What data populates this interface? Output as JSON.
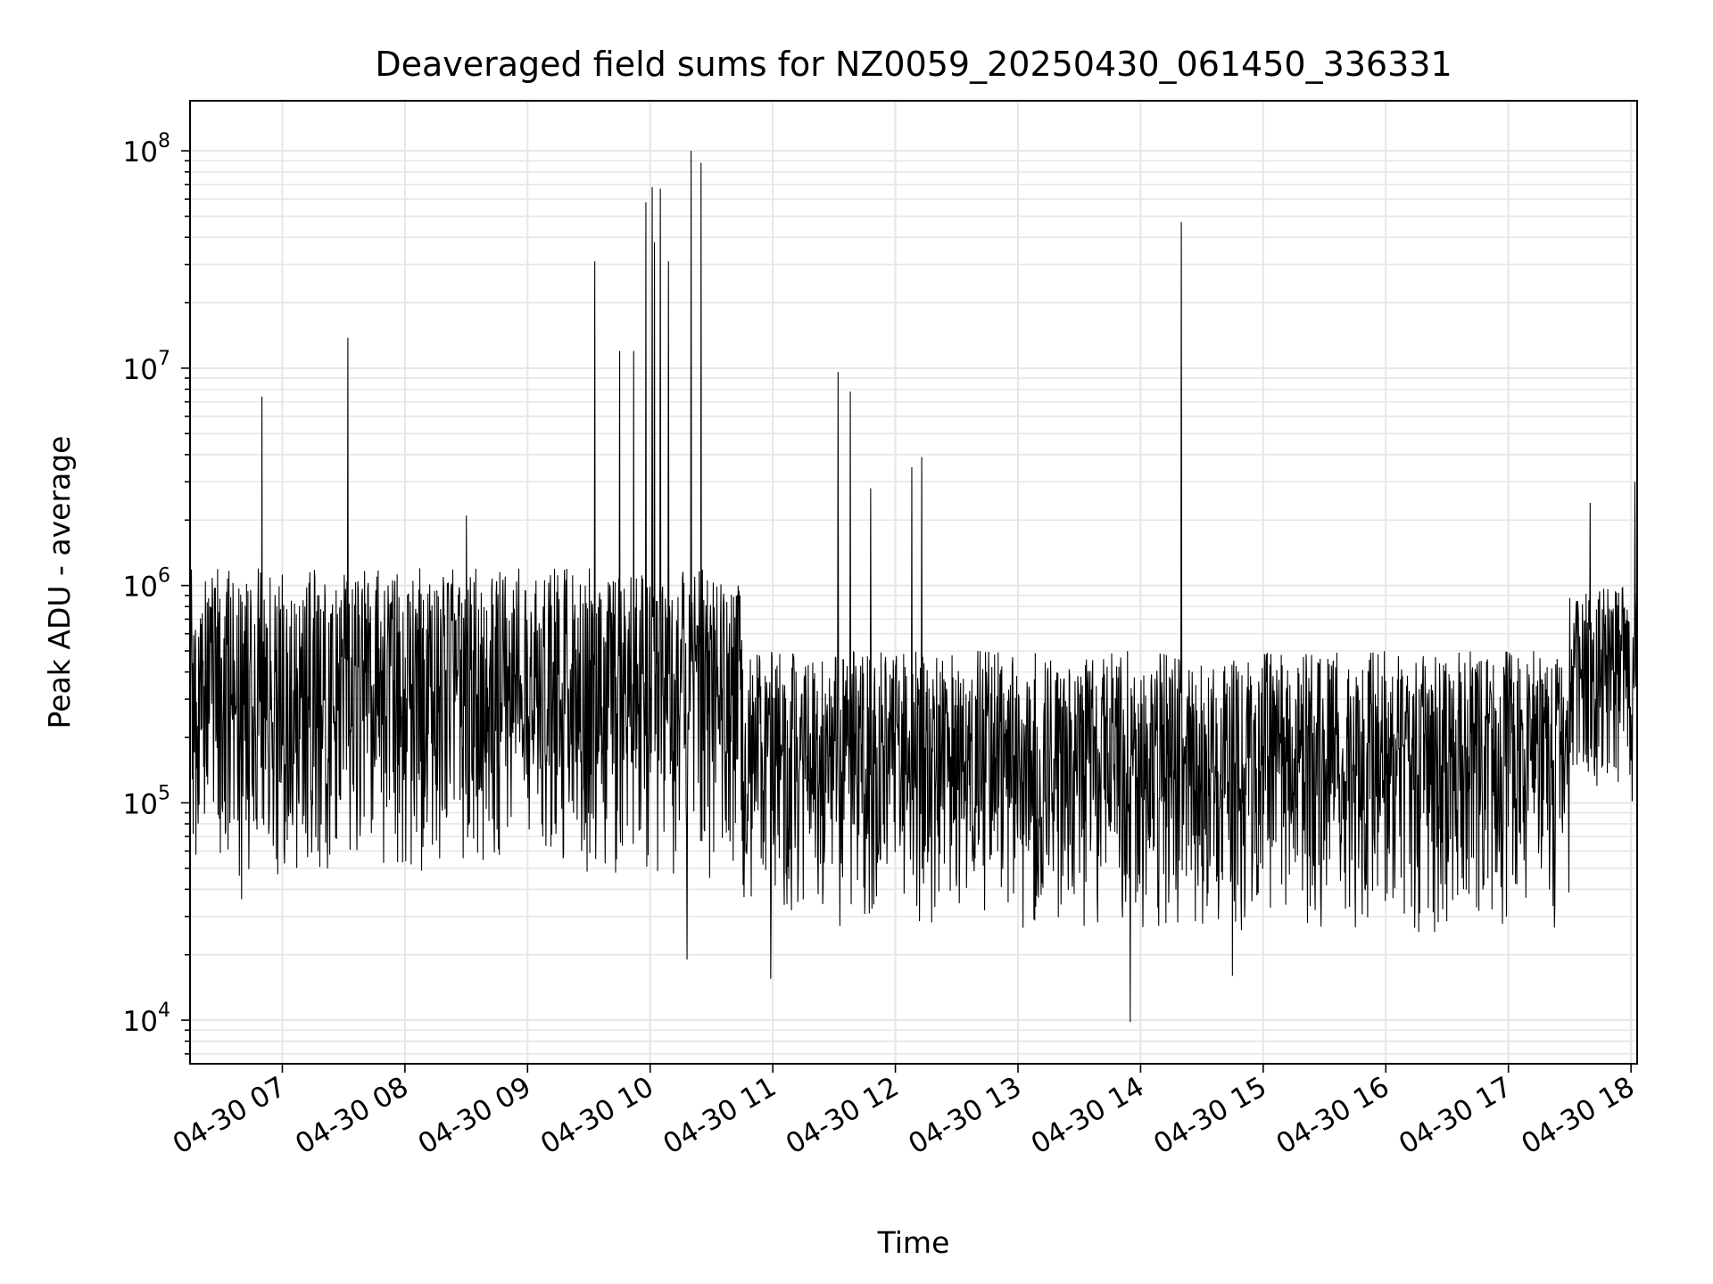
{
  "chart_data": {
    "type": "line",
    "title": "Deaveraged field sums for NZ0059_20250430_061450_336331",
    "xlabel": "Time",
    "ylabel": "Peak ADU - average",
    "yscale": "log",
    "grid": true,
    "line_color": "#000000",
    "grid_color": "#e6e6e6",
    "xlim": [
      "2025-04-30 06:14:50",
      "2025-04-30 18:03:00"
    ],
    "ylim": [
      6300,
      170000000
    ],
    "x_ticks": [
      {
        "time": "2025-04-30 07:00",
        "label": "04-30 07"
      },
      {
        "time": "2025-04-30 08:00",
        "label": "04-30 08"
      },
      {
        "time": "2025-04-30 09:00",
        "label": "04-30 09"
      },
      {
        "time": "2025-04-30 10:00",
        "label": "04-30 10"
      },
      {
        "time": "2025-04-30 11:00",
        "label": "04-30 11"
      },
      {
        "time": "2025-04-30 12:00",
        "label": "04-30 12"
      },
      {
        "time": "2025-04-30 13:00",
        "label": "04-30 13"
      },
      {
        "time": "2025-04-30 14:00",
        "label": "04-30 14"
      },
      {
        "time": "2025-04-30 15:00",
        "label": "04-30 15"
      },
      {
        "time": "2025-04-30 16:00",
        "label": "04-30 16"
      },
      {
        "time": "2025-04-30 17:00",
        "label": "04-30 17"
      },
      {
        "time": "2025-04-30 18:00",
        "label": "04-30 18"
      }
    ],
    "y_ticks": [
      {
        "value": 10000,
        "base": "10",
        "exp": "4"
      },
      {
        "value": 100000,
        "base": "10",
        "exp": "5"
      },
      {
        "value": 1000000,
        "base": "10",
        "exp": "6"
      },
      {
        "value": 10000000,
        "base": "10",
        "exp": "7"
      },
      {
        "value": 100000000,
        "base": "10",
        "exp": "8"
      }
    ],
    "segments": [
      {
        "start": "2025-04-30 06:14:50",
        "end": "2025-04-30 10:45",
        "high": 1200000,
        "low": 45000
      },
      {
        "start": "2025-04-30 10:45",
        "end": "2025-04-30 17:30",
        "high": 500000,
        "low": 25000
      },
      {
        "start": "2025-04-30 17:30",
        "end": "2025-04-30 18:03",
        "high": 1000000,
        "low": 100000
      }
    ],
    "peaks": [
      {
        "time": "2025-04-30 06:50",
        "value": 7400000
      },
      {
        "time": "2025-04-30 07:32",
        "value": 13800000
      },
      {
        "time": "2025-04-30 08:30",
        "value": 2100000
      },
      {
        "time": "2025-04-30 09:33",
        "value": 31000000
      },
      {
        "time": "2025-04-30 09:45",
        "value": 12000000
      },
      {
        "time": "2025-04-30 09:52",
        "value": 12000000
      },
      {
        "time": "2025-04-30 09:58",
        "value": 58000000
      },
      {
        "time": "2025-04-30 10:01",
        "value": 68000000
      },
      {
        "time": "2025-04-30 10:02",
        "value": 38000000
      },
      {
        "time": "2025-04-30 10:05",
        "value": 67000000
      },
      {
        "time": "2025-04-30 10:09",
        "value": 31000000
      },
      {
        "time": "2025-04-30 10:20",
        "value": 100000000
      },
      {
        "time": "2025-04-30 10:25",
        "value": 88000000
      },
      {
        "time": "2025-04-30 11:32",
        "value": 9600000
      },
      {
        "time": "2025-04-30 11:38",
        "value": 7800000
      },
      {
        "time": "2025-04-30 11:48",
        "value": 2800000
      },
      {
        "time": "2025-04-30 12:08",
        "value": 3500000
      },
      {
        "time": "2025-04-30 12:13",
        "value": 3900000
      },
      {
        "time": "2025-04-30 14:20",
        "value": 47000000
      },
      {
        "time": "2025-04-30 17:40",
        "value": 2400000
      },
      {
        "time": "2025-04-30 18:02",
        "value": 3000000
      }
    ],
    "troughs": [
      {
        "time": "2025-04-30 06:40",
        "value": 36000.0
      },
      {
        "time": "2025-04-30 10:18",
        "value": 19000
      },
      {
        "time": "2025-04-30 10:59",
        "value": 15500
      },
      {
        "time": "2025-04-30 13:55",
        "value": 9800
      },
      {
        "time": "2025-04-30 14:45",
        "value": 16000
      }
    ]
  }
}
